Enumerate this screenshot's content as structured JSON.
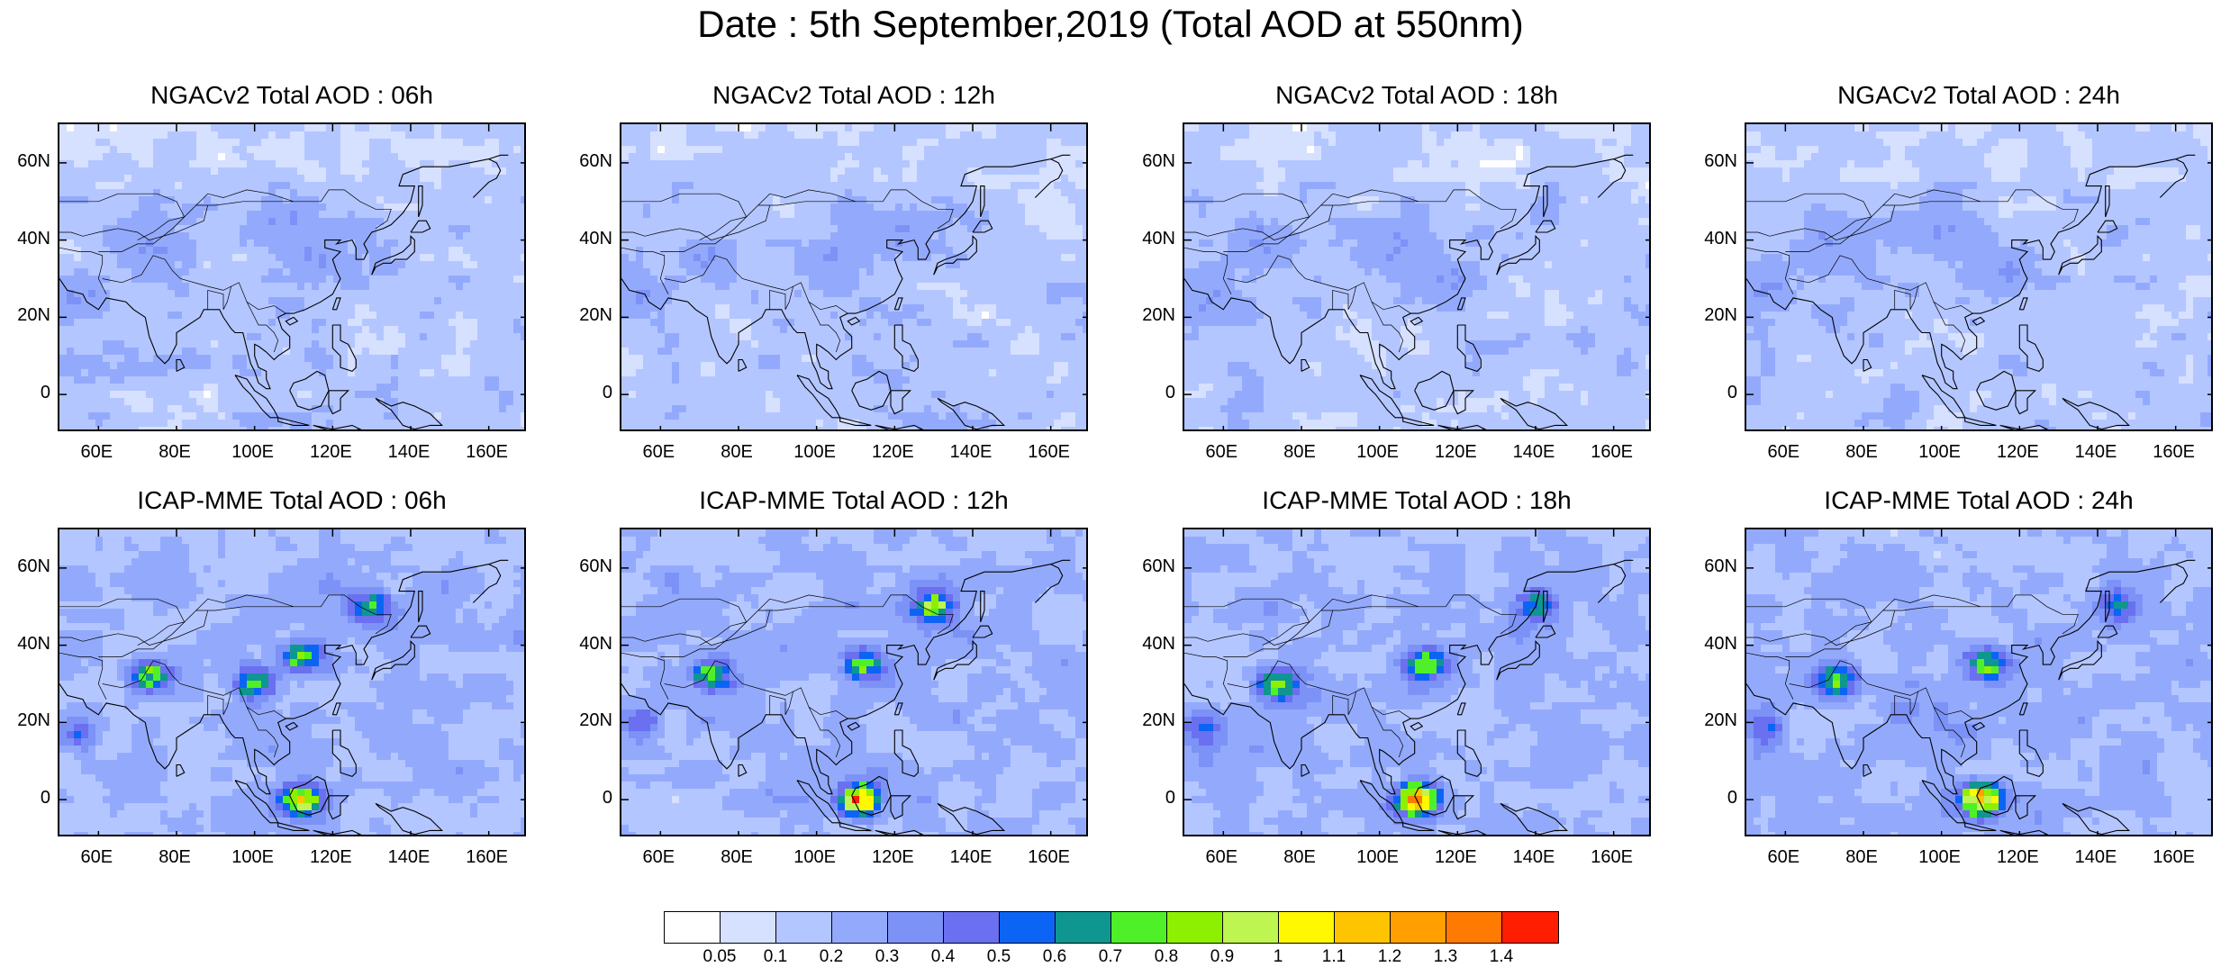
{
  "title": "Date : 5th September,2019 (Total AOD at 550nm)",
  "panels": [
    {
      "title": "NGACv2 Total AOD : 06h",
      "model": "NGACv2",
      "hour": "06h"
    },
    {
      "title": "NGACv2 Total AOD : 12h",
      "model": "NGACv2",
      "hour": "12h"
    },
    {
      "title": "NGACv2 Total AOD : 18h",
      "model": "NGACv2",
      "hour": "18h"
    },
    {
      "title": "NGACv2 Total AOD : 24h",
      "model": "NGACv2",
      "hour": "24h"
    },
    {
      "title": "ICAP-MME Total AOD : 06h",
      "model": "ICAP-MME",
      "hour": "06h"
    },
    {
      "title": "ICAP-MME Total AOD : 12h",
      "model": "ICAP-MME",
      "hour": "12h"
    },
    {
      "title": "ICAP-MME Total AOD : 18h",
      "model": "ICAP-MME",
      "hour": "18h"
    },
    {
      "title": "ICAP-MME Total AOD : 24h",
      "model": "ICAP-MME",
      "hour": "24h"
    }
  ],
  "axes": {
    "lat_range": [
      -10,
      70
    ],
    "lon_range": [
      50,
      170
    ],
    "lat_ticks": [
      "60N",
      "40N",
      "20N",
      "0"
    ],
    "lat_values": [
      60,
      40,
      20,
      0
    ],
    "lon_ticks": [
      "60E",
      "80E",
      "100E",
      "120E",
      "140E",
      "160E"
    ],
    "lon_values": [
      60,
      80,
      100,
      120,
      140,
      160
    ]
  },
  "colorbar": {
    "labels": [
      "0.05",
      "0.1",
      "0.2",
      "0.3",
      "0.4",
      "0.5",
      "0.6",
      "0.7",
      "0.8",
      "0.9",
      "1",
      "1.1",
      "1.2",
      "1.3",
      "1.4"
    ],
    "colors": [
      "#ffffff",
      "#d6e0ff",
      "#b4c6ff",
      "#93aafc",
      "#7c92f7",
      "#6a70f0",
      "#0c64f5",
      "#0f9690",
      "#50f028",
      "#8cf000",
      "#bef550",
      "#fff800",
      "#ffc400",
      "#ff9f00",
      "#ff7a00",
      "#ff1e00"
    ]
  },
  "chart_data": [
    {
      "type": "heatmap",
      "title": "NGACv2 Total AOD : 06h",
      "dataset": "NGACv2",
      "hour": "06h",
      "xlim": [
        50,
        170
      ],
      "ylim": [
        -10,
        70
      ],
      "typical_aod": [
        0.05,
        0.3
      ],
      "hotspots": [
        {
          "lon": 55,
          "lat": 25,
          "aod": 0.3
        },
        {
          "lon": 75,
          "lat": 38,
          "aod": 0.3
        },
        {
          "lon": 115,
          "lat": 35,
          "aod": 0.3
        },
        {
          "lon": 108,
          "lat": 45,
          "aod": 0.3
        }
      ]
    },
    {
      "type": "heatmap",
      "title": "NGACv2 Total AOD : 12h",
      "dataset": "NGACv2",
      "hour": "12h",
      "xlim": [
        50,
        170
      ],
      "ylim": [
        -10,
        70
      ],
      "typical_aod": [
        0.05,
        0.3
      ],
      "hotspots": [
        {
          "lon": 55,
          "lat": 25,
          "aod": 0.3
        },
        {
          "lon": 105,
          "lat": 35,
          "aod": 0.3
        },
        {
          "lon": 122,
          "lat": 42,
          "aod": 0.3
        },
        {
          "lon": 72,
          "lat": 35,
          "aod": 0.3
        }
      ]
    },
    {
      "type": "heatmap",
      "title": "NGACv2 Total AOD : 18h",
      "dataset": "NGACv2",
      "hour": "18h",
      "xlim": [
        50,
        170
      ],
      "ylim": [
        -10,
        70
      ],
      "typical_aod": [
        0.05,
        0.3
      ],
      "hotspots": [
        {
          "lon": 55,
          "lat": 25,
          "aod": 0.3
        },
        {
          "lon": 105,
          "lat": 38,
          "aod": 0.3
        },
        {
          "lon": 118,
          "lat": 30,
          "aod": 0.3
        },
        {
          "lon": 70,
          "lat": 40,
          "aod": 0.3
        }
      ]
    },
    {
      "type": "heatmap",
      "title": "NGACv2 Total AOD : 24h",
      "dataset": "NGACv2",
      "hour": "24h",
      "xlim": [
        50,
        170
      ],
      "ylim": [
        -10,
        70
      ],
      "typical_aod": [
        0.05,
        0.3
      ],
      "hotspots": [
        {
          "lon": 55,
          "lat": 28,
          "aod": 0.3
        },
        {
          "lon": 100,
          "lat": 42,
          "aod": 0.3
        },
        {
          "lon": 118,
          "lat": 33,
          "aod": 0.3
        },
        {
          "lon": 72,
          "lat": 40,
          "aod": 0.3
        }
      ]
    },
    {
      "type": "heatmap",
      "title": "ICAP-MME Total AOD : 06h",
      "dataset": "ICAP-MME",
      "hour": "06h",
      "xlim": [
        50,
        170
      ],
      "ylim": [
        -10,
        70
      ],
      "typical_aod": [
        0.1,
        0.4
      ],
      "hotspots": [
        {
          "lon": 55,
          "lat": 17,
          "aod": 0.5
        },
        {
          "lon": 73,
          "lat": 32,
          "aod": 0.8
        },
        {
          "lon": 112,
          "lat": 37,
          "aod": 0.8
        },
        {
          "lon": 100,
          "lat": 30,
          "aod": 0.8
        },
        {
          "lon": 112,
          "lat": 0,
          "aod": 1.0
        },
        {
          "lon": 130,
          "lat": 50,
          "aod": 0.7
        }
      ]
    },
    {
      "type": "heatmap",
      "title": "ICAP-MME Total AOD : 12h",
      "dataset": "ICAP-MME",
      "hour": "12h",
      "xlim": [
        50,
        170
      ],
      "ylim": [
        -10,
        70
      ],
      "typical_aod": [
        0.1,
        0.4
      ],
      "hotspots": [
        {
          "lon": 55,
          "lat": 20,
          "aod": 0.5
        },
        {
          "lon": 73,
          "lat": 32,
          "aod": 0.8
        },
        {
          "lon": 112,
          "lat": 35,
          "aod": 0.8
        },
        {
          "lon": 111,
          "lat": 0,
          "aod": 1.3
        },
        {
          "lon": 130,
          "lat": 50,
          "aod": 0.9
        }
      ]
    },
    {
      "type": "heatmap",
      "title": "ICAP-MME Total AOD : 18h",
      "dataset": "ICAP-MME",
      "hour": "18h",
      "xlim": [
        50,
        170
      ],
      "ylim": [
        -10,
        70
      ],
      "typical_aod": [
        0.1,
        0.4
      ],
      "hotspots": [
        {
          "lon": 55,
          "lat": 18,
          "aod": 0.5
        },
        {
          "lon": 74,
          "lat": 30,
          "aod": 0.8
        },
        {
          "lon": 112,
          "lat": 35,
          "aod": 0.8
        },
        {
          "lon": 110,
          "lat": 0,
          "aod": 1.4
        },
        {
          "lon": 140,
          "lat": 50,
          "aod": 0.7
        }
      ]
    },
    {
      "type": "heatmap",
      "title": "ICAP-MME Total AOD : 24h",
      "dataset": "ICAP-MME",
      "hour": "24h",
      "xlim": [
        50,
        170
      ],
      "ylim": [
        -10,
        70
      ],
      "typical_aod": [
        0.1,
        0.4
      ],
      "hotspots": [
        {
          "lon": 55,
          "lat": 18,
          "aod": 0.5
        },
        {
          "lon": 73,
          "lat": 31,
          "aod": 0.8
        },
        {
          "lon": 112,
          "lat": 35,
          "aod": 0.8
        },
        {
          "lon": 110,
          "lat": 0,
          "aod": 1.3
        },
        {
          "lon": 145,
          "lat": 50,
          "aod": 0.6
        }
      ]
    }
  ]
}
